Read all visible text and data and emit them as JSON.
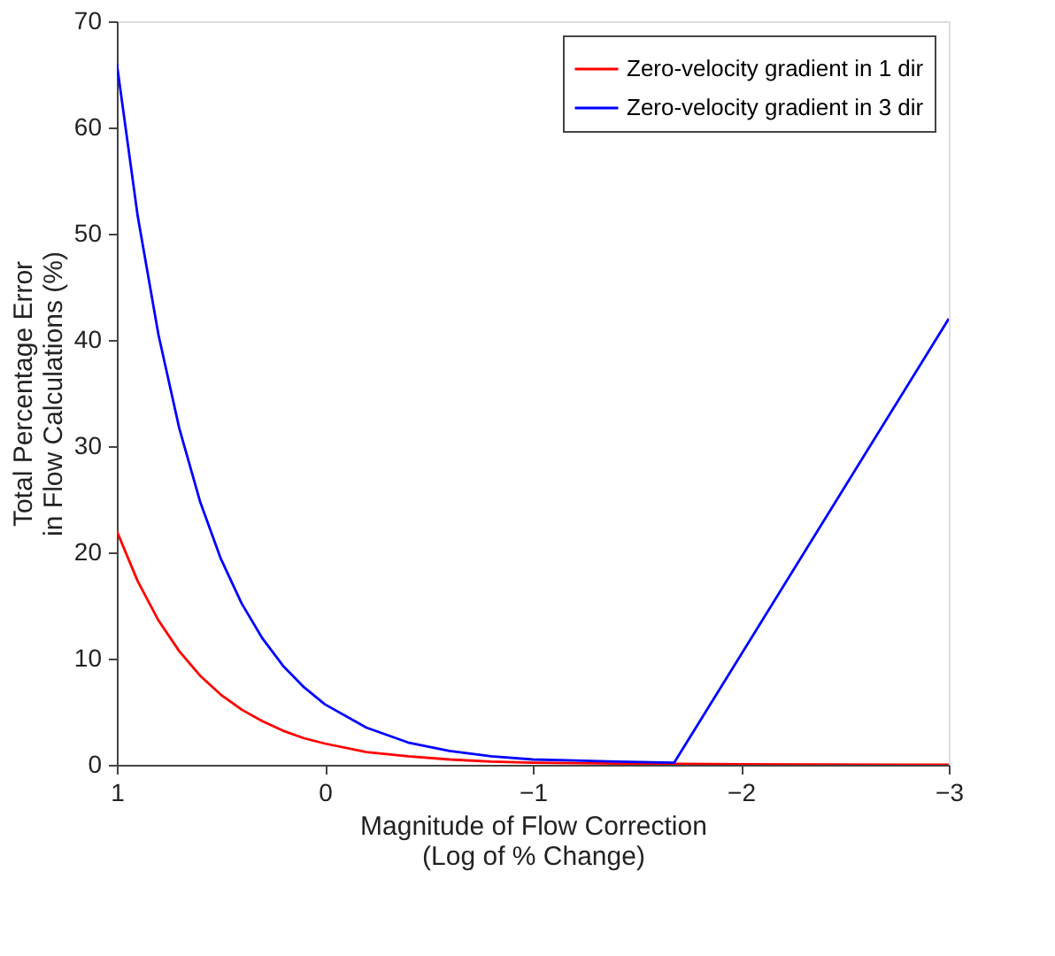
{
  "chart_data": {
    "type": "line",
    "xlabel": "Magnitude of Flow Correction\n(Log of % Change)",
    "ylabel": "Total Percentage Error\nin Flow Calculations (%)",
    "xlim": [
      1,
      -3
    ],
    "xticks": [
      1,
      0,
      -1,
      -2,
      -3
    ],
    "ylim": [
      0,
      70
    ],
    "yticks": [
      0,
      10,
      20,
      30,
      40,
      50,
      60,
      70
    ],
    "grid": false,
    "legend": "top right",
    "series": [
      {
        "name": "Zero-velocity gradient in 1 dir",
        "color": "#ff0000",
        "x": [
          1,
          0.9,
          0.8,
          0.7,
          0.6,
          0.5,
          0.4,
          0.3,
          0.2,
          0.1,
          0,
          -0.2,
          -0.4,
          -0.6,
          -0.8,
          -1,
          -1.5,
          -2,
          -3
        ],
        "values": [
          22,
          17.3,
          13.6,
          10.7,
          8.4,
          6.6,
          5.2,
          4.1,
          3.2,
          2.5,
          2.0,
          1.2,
          0.8,
          0.5,
          0.3,
          0.2,
          0.1,
          0.05,
          0
        ]
      },
      {
        "name": "Zero-velocity gradient in 3 dir",
        "color": "#0000ff",
        "x": [
          1,
          0.9,
          0.8,
          0.7,
          0.6,
          0.5,
          0.4,
          0.3,
          0.2,
          0.1,
          0,
          -0.2,
          -0.4,
          -0.6,
          -0.8,
          -1,
          -1.2,
          -1.4,
          -1.68,
          -3
        ],
        "values": [
          66,
          51.7,
          40.5,
          31.7,
          24.8,
          19.4,
          15.2,
          11.9,
          9.3,
          7.3,
          5.7,
          3.5,
          2.1,
          1.3,
          0.8,
          0.5,
          0.4,
          0.3,
          0.2,
          42
        ]
      }
    ]
  }
}
